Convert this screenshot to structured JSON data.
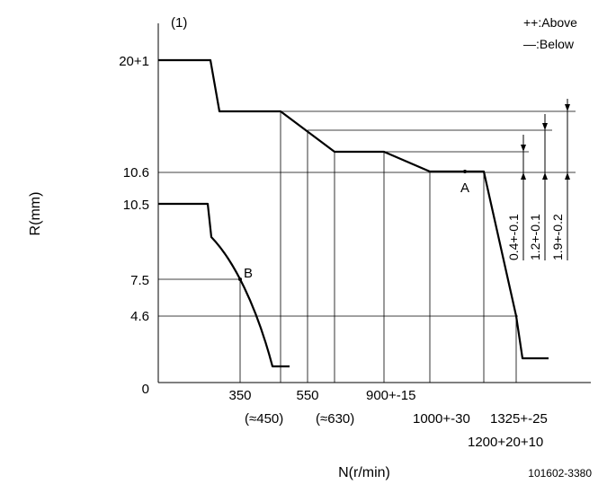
{
  "chart_data": {
    "type": "line",
    "figure_label": "(1)",
    "legend": [
      "++:Above",
      "—:Below"
    ],
    "xlabel": "N(r/min)",
    "ylabel": "R(mm)",
    "drawing_number": "101602-3380",
    "y_tick_labels": [
      "20+1",
      "10.6",
      "10.5",
      "7.5",
      "4.6",
      "0"
    ],
    "x_tick_labels": [
      "350",
      "550",
      "900+-15",
      "1000+-30",
      "(≈450)",
      "(≈630)",
      "1325+-25",
      "1200+20+10"
    ],
    "points": [
      "A",
      "B"
    ],
    "dimension_labels": [
      "0.4+-0.1",
      "1.2+-0.1",
      "1.9+-0.2"
    ]
  }
}
